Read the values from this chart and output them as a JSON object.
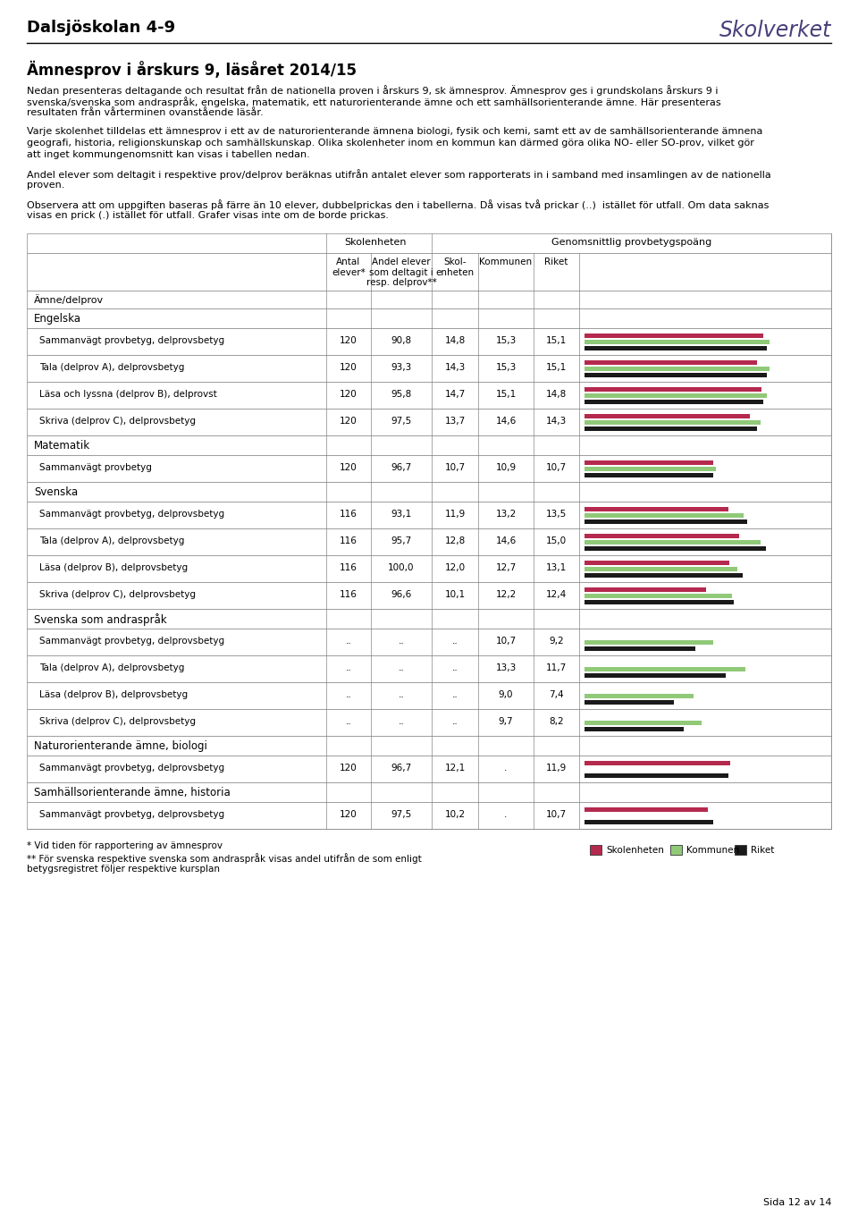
{
  "title_school": "Dalsjöskolan 4-9",
  "title_main": "Ämnesprov i årskurs 9, läsåret 2014/15",
  "intro_text_lines": [
    "Nedan presenteras deltagande och resultat från de nationella proven i årskurs 9, sk ämnesprov. Ämnesprov ges i grundskolans årskurs 9 i",
    "svenska/svenska som andraspråk, engelska, matematik, ett naturorienterande ämne och ett samhällsorienterande ämne. Här presenteras",
    "resultaten från vårterminen ovanstående läsår."
  ],
  "body_text1_lines": [
    "Varje skolenhet tilldelas ett ämnesprov i ett av de naturorienterande ämnena biologi, fysik och kemi, samt ett av de samhällsorienterande ämnena",
    "geografi, historia, religionskunskap och samhällskunskap. Olika skolenheter inom en kommun kan därmed göra olika NO- eller SO-prov, vilket gör",
    "att inget kommungenomsnitt kan visas i tabellen nedan."
  ],
  "body_text2_lines": [
    "Andel elever som deltagit i respektive prov/delprov beräknas utifrån antalet elever som rapporterats in i samband med insamlingen av de nationella",
    "proven."
  ],
  "body_text3_lines": [
    "Observera att om uppgiften baseras på färre än 10 elever, dubbelprickas den i tabellerna. Då visas två prickar (..)  istället för utfall. Om data saknas",
    "visas en prick (.) istället för utfall. Grafer visas inte om de borde prickas."
  ],
  "footnote1": "* Vid tiden för rapportering av ämnesprov",
  "footnote2_lines": [
    "** För svenska respektive svenska som andraspråk visas andel utifrån de som enligt",
    "betygsregistret följer respektive kursplan"
  ],
  "page_label": "Sida 12 av 14",
  "sections": [
    {
      "section_title": "Engelska",
      "rows": [
        {
          "label": "Sammanvägt provbetyg, delprovsbetyɡ",
          "antal": "120",
          "andel": "90,8",
          "skol": "14,8",
          "kommun": "15,3",
          "riket": "15,1",
          "bar_skol": 14.8,
          "bar_kommun": 15.3,
          "bar_riket": 15.1
        },
        {
          "label": "Tala (delprov A), delprovsbetyg",
          "antal": "120",
          "andel": "93,3",
          "skol": "14,3",
          "kommun": "15,3",
          "riket": "15,1",
          "bar_skol": 14.3,
          "bar_kommun": 15.3,
          "bar_riket": 15.1
        },
        {
          "label": "Läsa och lyssna (delprov B), delprovst",
          "antal": "120",
          "andel": "95,8",
          "skol": "14,7",
          "kommun": "15,1",
          "riket": "14,8",
          "bar_skol": 14.7,
          "bar_kommun": 15.1,
          "bar_riket": 14.8
        },
        {
          "label": "Skriva (delprov C), delprovsbetyg",
          "antal": "120",
          "andel": "97,5",
          "skol": "13,7",
          "kommun": "14,6",
          "riket": "14,3",
          "bar_skol": 13.7,
          "bar_kommun": 14.6,
          "bar_riket": 14.3
        }
      ]
    },
    {
      "section_title": "Matematik",
      "rows": [
        {
          "label": "Sammanvägt provbetyg",
          "antal": "120",
          "andel": "96,7",
          "skol": "10,7",
          "kommun": "10,9",
          "riket": "10,7",
          "bar_skol": 10.7,
          "bar_kommun": 10.9,
          "bar_riket": 10.7
        }
      ]
    },
    {
      "section_title": "Svenska",
      "rows": [
        {
          "label": "Sammanvägt provbetyg, delprovsbetyɡ",
          "antal": "116",
          "andel": "93,1",
          "skol": "11,9",
          "kommun": "13,2",
          "riket": "13,5",
          "bar_skol": 11.9,
          "bar_kommun": 13.2,
          "bar_riket": 13.5
        },
        {
          "label": "Tala (delprov A), delprovsbetyg",
          "antal": "116",
          "andel": "95,7",
          "skol": "12,8",
          "kommun": "14,6",
          "riket": "15,0",
          "bar_skol": 12.8,
          "bar_kommun": 14.6,
          "bar_riket": 15.0
        },
        {
          "label": "Läsa (delprov B), delprovsbetyg",
          "antal": "116",
          "andel": "100,0",
          "skol": "12,0",
          "kommun": "12,7",
          "riket": "13,1",
          "bar_skol": 12.0,
          "bar_kommun": 12.7,
          "bar_riket": 13.1
        },
        {
          "label": "Skriva (delprov C), delprovsbetyg",
          "antal": "116",
          "andel": "96,6",
          "skol": "10,1",
          "kommun": "12,2",
          "riket": "12,4",
          "bar_skol": 10.1,
          "bar_kommun": 12.2,
          "bar_riket": 12.4
        }
      ]
    },
    {
      "section_title": "Svenska som andraspråk",
      "rows": [
        {
          "label": "Sammanvägt provbetyg, delprovsbetyɡ",
          "antal": "..",
          "andel": "..",
          "skol": "..",
          "kommun": "10,7",
          "riket": "9,2",
          "bar_skol": null,
          "bar_kommun": 10.7,
          "bar_riket": 9.2
        },
        {
          "label": "Tala (delprov A), delprovsbetyg",
          "antal": "..",
          "andel": "..",
          "skol": "..",
          "kommun": "13,3",
          "riket": "11,7",
          "bar_skol": null,
          "bar_kommun": 13.3,
          "bar_riket": 11.7
        },
        {
          "label": "Läsa (delprov B), delprovsbetyg",
          "antal": "..",
          "andel": "..",
          "skol": "..",
          "kommun": "9,0",
          "riket": "7,4",
          "bar_skol": null,
          "bar_kommun": 9.0,
          "bar_riket": 7.4
        },
        {
          "label": "Skriva (delprov C), delprovsbetyg",
          "antal": "..",
          "andel": "..",
          "skol": "..",
          "kommun": "9,7",
          "riket": "8,2",
          "bar_skol": null,
          "bar_kommun": 9.7,
          "bar_riket": 8.2
        }
      ]
    },
    {
      "section_title": "Naturorienterande ämne, biologi",
      "rows": [
        {
          "label": "Sammanvägt provbetyg, delprovsbetyɡ",
          "antal": "120",
          "andel": "96,7",
          "skol": "12,1",
          "kommun": ".",
          "riket": "11,9",
          "bar_skol": 12.1,
          "bar_kommun": null,
          "bar_riket": 11.9
        }
      ]
    },
    {
      "section_title": "Samhällsorienterande ämne, historia",
      "rows": [
        {
          "label": "Sammanvägt provbetyg, delprovsbetyɡ",
          "antal": "120",
          "andel": "97,5",
          "skol": "10,2",
          "kommun": ".",
          "riket": "10,7",
          "bar_skol": 10.2,
          "bar_kommun": null,
          "bar_riket": 10.7
        }
      ]
    }
  ],
  "bar_max": 20.0,
  "color_skol": "#b5294e",
  "color_kommun": "#90c978",
  "color_riket": "#1a1a1a"
}
